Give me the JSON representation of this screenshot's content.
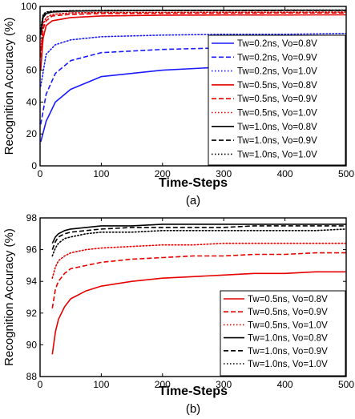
{
  "chart_data": [
    {
      "type": "line",
      "panel_label": "(a)",
      "xlabel": "Time-Steps",
      "ylabel": "Recognition Accuracy (%)",
      "xlim": [
        0,
        500
      ],
      "ylim": [
        0,
        100
      ],
      "xticks": [
        0,
        100,
        200,
        300,
        400,
        500
      ],
      "yticks": [
        0,
        20,
        40,
        60,
        80,
        100
      ],
      "grid": false,
      "legend_position": "right",
      "series": [
        {
          "name": "Tw=0.2ns, Vo=0.8V",
          "color": "#1a1aff",
          "dash": "solid",
          "x": [
            1,
            10,
            25,
            50,
            100,
            200,
            300,
            400,
            500
          ],
          "y": [
            15,
            28,
            40,
            48,
            56,
            60,
            62,
            64,
            65
          ]
        },
        {
          "name": "Tw=0.2ns, Vo=0.9V",
          "color": "#1a1aff",
          "dash": "dash",
          "x": [
            1,
            10,
            25,
            50,
            100,
            200,
            300,
            400,
            500
          ],
          "y": [
            26,
            45,
            58,
            66,
            71,
            73,
            74,
            75,
            75
          ]
        },
        {
          "name": "Tw=0.2ns, Vo=1.0V",
          "color": "#1a1aff",
          "dash": "dot",
          "x": [
            1,
            10,
            25,
            50,
            100,
            200,
            300,
            400,
            500
          ],
          "y": [
            50,
            70,
            76,
            79,
            81,
            82,
            82.5,
            82.5,
            83
          ]
        },
        {
          "name": "Tw=0.5ns, Vo=0.8V",
          "color": "#e60000",
          "dash": "solid",
          "x": [
            1,
            5,
            10,
            20,
            50,
            100,
            200,
            300,
            400,
            500
          ],
          "y": [
            60,
            80,
            88,
            91,
            93,
            94,
            94.5,
            94.6,
            94.6,
            94.7
          ]
        },
        {
          "name": "Tw=0.5ns, Vo=0.9V",
          "color": "#e60000",
          "dash": "dash",
          "x": [
            1,
            5,
            10,
            20,
            50,
            100,
            200,
            300,
            400,
            500
          ],
          "y": [
            68,
            86,
            91,
            94,
            95,
            95.5,
            95.7,
            95.8,
            95.9,
            95.9
          ]
        },
        {
          "name": "Tw=0.5ns, Vo=1.0V",
          "color": "#e60000",
          "dash": "dot",
          "x": [
            1,
            5,
            10,
            20,
            50,
            100,
            200,
            300,
            400,
            500
          ],
          "y": [
            72,
            89,
            93,
            95,
            96,
            96.2,
            96.3,
            96.4,
            96.4,
            96.5
          ]
        },
        {
          "name": "Tw=1.0ns, Vo=0.8V",
          "color": "#000000",
          "dash": "solid",
          "x": [
            1,
            5,
            10,
            20,
            50,
            100,
            200,
            300,
            400,
            500
          ],
          "y": [
            82,
            93,
            95.5,
            96.5,
            97,
            97.3,
            97.5,
            97.5,
            97.6,
            97.6
          ]
        },
        {
          "name": "Tw=1.0ns, Vo=0.9V",
          "color": "#000000",
          "dash": "dash",
          "x": [
            1,
            5,
            10,
            20,
            50,
            100,
            200,
            300,
            400,
            500
          ],
          "y": [
            84,
            94,
            96,
            96.8,
            97.2,
            97.3,
            97.4,
            97.4,
            97.5,
            97.5
          ]
        },
        {
          "name": "Tw=1.0ns, Vo=1.0V",
          "color": "#000000",
          "dash": "dot",
          "x": [
            1,
            5,
            10,
            20,
            50,
            100,
            200,
            300,
            400,
            500
          ],
          "y": [
            86,
            95,
            96.5,
            97,
            97.3,
            97.5,
            97.6,
            97.6,
            97.7,
            97.7
          ]
        }
      ]
    },
    {
      "type": "line",
      "panel_label": "(b)",
      "xlabel": "Time-Steps",
      "ylabel": "Recognition Accuracy (%)",
      "xlim": [
        0,
        500
      ],
      "ylim": [
        88,
        98
      ],
      "xticks": [
        0,
        100,
        200,
        300,
        400,
        500
      ],
      "yticks": [
        88,
        90,
        92,
        94,
        96,
        98
      ],
      "grid": false,
      "legend_position": "bottom-right",
      "series": [
        {
          "name": "Tw=0.5ns, Vo=0.8V",
          "color": "#e60000",
          "dash": "solid",
          "x": [
            20,
            25,
            30,
            40,
            50,
            75,
            100,
            150,
            200,
            250,
            300,
            350,
            400,
            450,
            500
          ],
          "y": [
            89.4,
            90.8,
            91.6,
            92.4,
            92.9,
            93.4,
            93.7,
            94.0,
            94.2,
            94.3,
            94.4,
            94.5,
            94.5,
            94.6,
            94.6
          ]
        },
        {
          "name": "Tw=0.5ns, Vo=0.9V",
          "color": "#e60000",
          "dash": "dash",
          "x": [
            20,
            25,
            30,
            40,
            50,
            75,
            100,
            150,
            200,
            250,
            300,
            350,
            400,
            450,
            500
          ],
          "y": [
            92.3,
            93.5,
            94.0,
            94.5,
            94.8,
            95.0,
            95.2,
            95.4,
            95.5,
            95.6,
            95.6,
            95.7,
            95.7,
            95.8,
            95.8
          ]
        },
        {
          "name": "Tw=0.5ns, Vo=1.0V",
          "color": "#e60000",
          "dash": "dot",
          "x": [
            20,
            25,
            30,
            40,
            50,
            75,
            100,
            150,
            200,
            250,
            300,
            350,
            400,
            450,
            500
          ],
          "y": [
            94.2,
            94.9,
            95.3,
            95.6,
            95.8,
            96.0,
            96.1,
            96.2,
            96.3,
            96.3,
            96.4,
            96.4,
            96.4,
            96.4,
            96.4
          ]
        },
        {
          "name": "Tw=1.0ns, Vo=0.8V",
          "color": "#000000",
          "dash": "solid",
          "x": [
            20,
            25,
            30,
            40,
            50,
            75,
            100,
            150,
            200,
            250,
            300,
            350,
            400,
            450,
            500
          ],
          "y": [
            96.4,
            96.8,
            97.0,
            97.2,
            97.3,
            97.4,
            97.5,
            97.5,
            97.6,
            97.6,
            97.6,
            97.6,
            97.6,
            97.6,
            97.6
          ]
        },
        {
          "name": "Tw=1.0ns, Vo=0.9V",
          "color": "#000000",
          "dash": "dash",
          "x": [
            20,
            25,
            30,
            40,
            50,
            75,
            100,
            150,
            200,
            250,
            300,
            350,
            400,
            450,
            500
          ],
          "y": [
            96.0,
            96.5,
            96.8,
            97.0,
            97.1,
            97.2,
            97.3,
            97.4,
            97.4,
            97.4,
            97.4,
            97.5,
            97.5,
            97.5,
            97.5
          ]
        },
        {
          "name": "Tw=1.0ns, Vo=1.0V",
          "color": "#000000",
          "dash": "dot",
          "x": [
            20,
            25,
            30,
            40,
            50,
            75,
            100,
            150,
            200,
            250,
            300,
            350,
            400,
            450,
            500
          ],
          "y": [
            95.6,
            96.1,
            96.4,
            96.7,
            96.8,
            97.0,
            97.1,
            97.1,
            97.2,
            97.2,
            97.2,
            97.2,
            97.2,
            97.2,
            97.3
          ]
        }
      ]
    }
  ]
}
